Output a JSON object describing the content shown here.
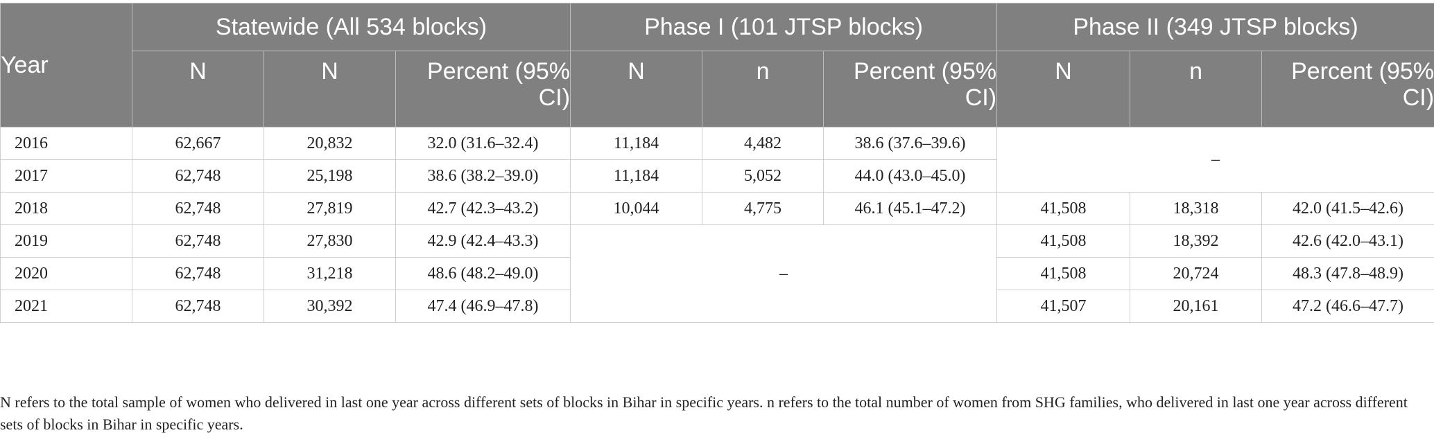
{
  "header": {
    "year": "Year",
    "groups": [
      "Statewide (All 534 blocks)",
      "Phase I (101 JTSP blocks)",
      "Phase II (349 JTSP blocks)"
    ],
    "sub": {
      "statewide": [
        "N",
        "N",
        "Percent (95% CI)"
      ],
      "phase1": [
        "N",
        "n",
        "Percent (95% CI)"
      ],
      "phase2": [
        "N",
        "n",
        "Percent (95% CI)"
      ]
    }
  },
  "dash": "–",
  "rows": [
    {
      "year": "2016",
      "sw": [
        "62,667",
        "20,832",
        "32.0 (31.6–32.4)"
      ],
      "p1": [
        "11,184",
        "4,482",
        "38.6 (37.6–39.6)"
      ]
    },
    {
      "year": "2017",
      "sw": [
        "62,748",
        "25,198",
        "38.6 (38.2–39.0)"
      ],
      "p1": [
        "11,184",
        "5,052",
        "44.0 (43.0–45.0)"
      ]
    },
    {
      "year": "2018",
      "sw": [
        "62,748",
        "27,819",
        "42.7 (42.3–43.2)"
      ],
      "p1": [
        "10,044",
        "4,775",
        "46.1 (45.1–47.2)"
      ],
      "p2": [
        "41,508",
        "18,318",
        "42.0 (41.5–42.6)"
      ]
    },
    {
      "year": "2019",
      "sw": [
        "62,748",
        "27,830",
        "42.9 (42.4–43.3)"
      ],
      "p2": [
        "41,508",
        "18,392",
        "42.6 (42.0–43.1)"
      ]
    },
    {
      "year": "2020",
      "sw": [
        "62,748",
        "31,218",
        "48.6 (48.2–49.0)"
      ],
      "p2": [
        "41,508",
        "20,724",
        "48.3 (47.8–48.9)"
      ]
    },
    {
      "year": "2021",
      "sw": [
        "62,748",
        "30,392",
        "47.4 (46.9–47.8)"
      ],
      "p2": [
        "41,507",
        "20,161",
        "47.2 (46.6–47.7)"
      ]
    }
  ],
  "footnote": "N refers to the total sample of women who delivered in last one year across different sets of blocks in Bihar in specific years. n refers to the total number of women from SHG families, who delivered in last one year across different sets of blocks in Bihar in specific years.",
  "colors": {
    "header_bg": "#808080",
    "header_text": "#ffffff",
    "border": "#cfcfcf",
    "body_text": "#222222"
  }
}
